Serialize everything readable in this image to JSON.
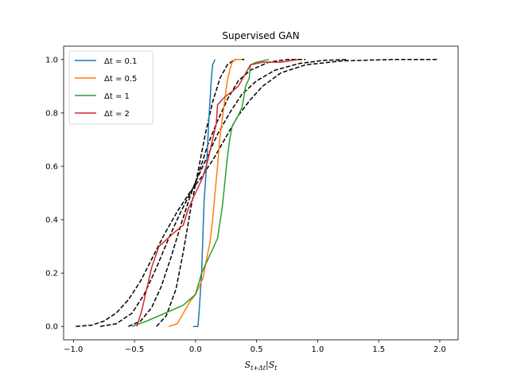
{
  "chart_data": {
    "type": "line",
    "title": "Supervised GAN",
    "xlabel": "S_{t+Δt}|S_t",
    "ylabel": "",
    "xlim": [
      -1.08,
      2.15
    ],
    "ylim": [
      -0.05,
      1.05
    ],
    "x_ticks": [
      -1.0,
      -0.5,
      0.0,
      0.5,
      1.0,
      1.5,
      2.0
    ],
    "x_tick_labels": [
      "−1.0",
      "−0.5",
      "0.0",
      "0.5",
      "1.0",
      "1.5",
      "2.0"
    ],
    "y_ticks": [
      0.0,
      0.2,
      0.4,
      0.6,
      0.8,
      1.0
    ],
    "y_tick_labels": [
      "0.0",
      "0.2",
      "0.4",
      "0.6",
      "0.8",
      "1.0"
    ],
    "grid": false,
    "legend_position": "top-left",
    "series": [
      {
        "name": "Δt = 0.1",
        "color": "#1f77b4",
        "style": "solid",
        "points": [
          [
            -0.02,
            0.0
          ],
          [
            0.02,
            0.0
          ],
          [
            0.03,
            0.06
          ],
          [
            0.05,
            0.2
          ],
          [
            0.07,
            0.47
          ],
          [
            0.09,
            0.6
          ],
          [
            0.11,
            0.78
          ],
          [
            0.13,
            0.93
          ],
          [
            0.14,
            0.98
          ],
          [
            0.16,
            1.0
          ]
        ]
      },
      {
        "name": "Δt = 0.5",
        "color": "#ff7f0e",
        "style": "solid",
        "points": [
          [
            -0.22,
            0.0
          ],
          [
            -0.15,
            0.01
          ],
          [
            -0.1,
            0.05
          ],
          [
            -0.05,
            0.09
          ],
          [
            0.0,
            0.12
          ],
          [
            0.06,
            0.18
          ],
          [
            0.12,
            0.32
          ],
          [
            0.14,
            0.4
          ],
          [
            0.16,
            0.5
          ],
          [
            0.18,
            0.6
          ],
          [
            0.2,
            0.71
          ],
          [
            0.22,
            0.78
          ],
          [
            0.24,
            0.85
          ],
          [
            0.26,
            0.92
          ],
          [
            0.28,
            0.96
          ],
          [
            0.3,
            0.99
          ],
          [
            0.33,
            1.0
          ],
          [
            0.38,
            1.0
          ]
        ]
      },
      {
        "name": "Δt = 1",
        "color": "#2ca02c",
        "style": "solid",
        "points": [
          [
            -0.52,
            0.0
          ],
          [
            -0.4,
            0.02
          ],
          [
            -0.25,
            0.05
          ],
          [
            -0.1,
            0.08
          ],
          [
            0.0,
            0.12
          ],
          [
            0.05,
            0.2
          ],
          [
            0.1,
            0.25
          ],
          [
            0.18,
            0.33
          ],
          [
            0.22,
            0.45
          ],
          [
            0.26,
            0.63
          ],
          [
            0.28,
            0.7
          ],
          [
            0.3,
            0.75
          ],
          [
            0.35,
            0.79
          ],
          [
            0.38,
            0.82
          ],
          [
            0.4,
            0.87
          ],
          [
            0.41,
            0.9
          ],
          [
            0.44,
            0.93
          ],
          [
            0.45,
            0.98
          ],
          [
            0.5,
            0.99
          ],
          [
            0.6,
            1.0
          ]
        ]
      },
      {
        "name": "Δt = 2",
        "color": "#d62728",
        "style": "solid",
        "points": [
          [
            -0.48,
            0.0
          ],
          [
            -0.44,
            0.06
          ],
          [
            -0.4,
            0.14
          ],
          [
            -0.36,
            0.22
          ],
          [
            -0.3,
            0.3
          ],
          [
            -0.25,
            0.32
          ],
          [
            -0.18,
            0.35
          ],
          [
            -0.1,
            0.38
          ],
          [
            -0.06,
            0.44
          ],
          [
            0.0,
            0.5
          ],
          [
            0.06,
            0.56
          ],
          [
            0.1,
            0.62
          ],
          [
            0.14,
            0.7
          ],
          [
            0.17,
            0.76
          ],
          [
            0.18,
            0.83
          ],
          [
            0.24,
            0.86
          ],
          [
            0.3,
            0.88
          ],
          [
            0.35,
            0.9
          ],
          [
            0.4,
            0.94
          ],
          [
            0.45,
            0.98
          ],
          [
            0.55,
            0.99
          ],
          [
            0.7,
            0.99
          ],
          [
            0.84,
            1.0
          ]
        ]
      },
      {
        "name": "",
        "color": "#000000",
        "style": "dashed",
        "points": [
          [
            -0.98,
            0.0
          ],
          [
            -0.85,
            0.005
          ],
          [
            -0.75,
            0.02
          ],
          [
            -0.65,
            0.05
          ],
          [
            -0.55,
            0.1
          ],
          [
            -0.45,
            0.17
          ],
          [
            -0.35,
            0.26
          ],
          [
            -0.25,
            0.35
          ],
          [
            -0.15,
            0.43
          ],
          [
            -0.05,
            0.5
          ],
          [
            0.05,
            0.56
          ],
          [
            0.15,
            0.63
          ],
          [
            0.25,
            0.71
          ],
          [
            0.35,
            0.79
          ],
          [
            0.45,
            0.85
          ],
          [
            0.55,
            0.9
          ],
          [
            0.7,
            0.95
          ],
          [
            0.9,
            0.98
          ],
          [
            1.2,
            0.995
          ],
          [
            1.6,
            1.0
          ],
          [
            1.98,
            1.0
          ]
        ]
      },
      {
        "name": "",
        "color": "#000000",
        "style": "dashed",
        "points": [
          [
            -0.78,
            0.0
          ],
          [
            -0.65,
            0.01
          ],
          [
            -0.52,
            0.05
          ],
          [
            -0.42,
            0.12
          ],
          [
            -0.32,
            0.22
          ],
          [
            -0.22,
            0.33
          ],
          [
            -0.12,
            0.43
          ],
          [
            -0.02,
            0.52
          ],
          [
            0.08,
            0.62
          ],
          [
            0.18,
            0.72
          ],
          [
            0.28,
            0.8
          ],
          [
            0.38,
            0.87
          ],
          [
            0.5,
            0.92
          ],
          [
            0.65,
            0.96
          ],
          [
            0.85,
            0.985
          ],
          [
            1.05,
            0.997
          ],
          [
            1.25,
            1.0
          ]
        ]
      },
      {
        "name": "",
        "color": "#000000",
        "style": "dashed",
        "points": [
          [
            -0.55,
            0.0
          ],
          [
            -0.45,
            0.02
          ],
          [
            -0.36,
            0.07
          ],
          [
            -0.28,
            0.15
          ],
          [
            -0.2,
            0.26
          ],
          [
            -0.12,
            0.38
          ],
          [
            -0.05,
            0.48
          ],
          [
            0.03,
            0.58
          ],
          [
            0.1,
            0.68
          ],
          [
            0.18,
            0.77
          ],
          [
            0.26,
            0.85
          ],
          [
            0.35,
            0.92
          ],
          [
            0.45,
            0.96
          ],
          [
            0.6,
            0.99
          ],
          [
            0.75,
            1.0
          ],
          [
            0.9,
            1.0
          ]
        ]
      },
      {
        "name": "",
        "color": "#000000",
        "style": "dashed",
        "points": [
          [
            -0.32,
            0.0
          ],
          [
            -0.24,
            0.04
          ],
          [
            -0.16,
            0.14
          ],
          [
            -0.1,
            0.28
          ],
          [
            -0.04,
            0.44
          ],
          [
            0.02,
            0.58
          ],
          [
            0.08,
            0.72
          ],
          [
            0.14,
            0.84
          ],
          [
            0.2,
            0.93
          ],
          [
            0.26,
            0.98
          ],
          [
            0.32,
            1.0
          ],
          [
            0.4,
            1.0
          ]
        ]
      }
    ]
  }
}
